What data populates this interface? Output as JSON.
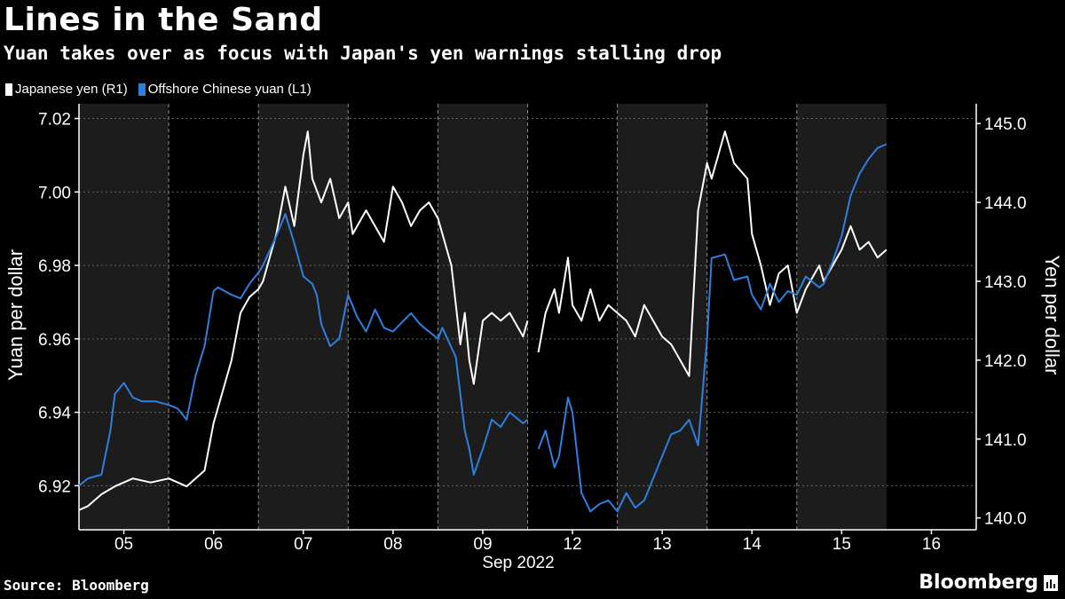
{
  "header": {
    "title": "Lines in the Sand",
    "subtitle": "Yuan takes over as focus with Japan's yen warnings stalling drop"
  },
  "footer": {
    "source": "Source: Bloomberg",
    "brand": "Bloomberg"
  },
  "colors": {
    "background": "#000000",
    "yen": "#ffffff",
    "yuan": "#2d7fe0",
    "shade": "#1c1c1c",
    "grid": "#666666"
  },
  "chart_data": {
    "type": "line",
    "title": "Lines in the Sand",
    "subtitle": "Yuan takes over as focus with Japan's yen warnings stalling drop",
    "xlabel": "Sep 2022",
    "ylabel_left": "Yuan per dollar",
    "ylabel_right": "Yen per dollar",
    "categories": [
      "05",
      "06",
      "07",
      "08",
      "09",
      "12",
      "13",
      "14",
      "15",
      "16"
    ],
    "shaded_days": [
      "05",
      "07",
      "09",
      "13",
      "15"
    ],
    "ylim_left": [
      6.908,
      7.024
    ],
    "ylim_right": [
      139.85,
      145.25
    ],
    "yticks_left": [
      6.92,
      6.94,
      6.96,
      6.98,
      7.0,
      7.02
    ],
    "yticks_left_labels": [
      "6.92",
      "6.94",
      "6.96",
      "6.98",
      "7.00",
      "7.02"
    ],
    "yticks_right": [
      140.0,
      141.0,
      142.0,
      143.0,
      144.0,
      145.0
    ],
    "yticks_right_labels": [
      "140.0",
      "141.0",
      "142.0",
      "143.0",
      "144.0",
      "145.0"
    ],
    "legend": [
      {
        "name": "Japanese yen (R1)",
        "color": "#ffffff"
      },
      {
        "name": "Offshore Chinese yuan (L1)",
        "color": "#2d7fe0"
      }
    ],
    "series": [
      {
        "name": "Japanese yen (R1)",
        "axis": "right",
        "x": [
          4.5,
          4.6,
          4.75,
          4.9,
          5.1,
          5.3,
          5.5,
          5.7,
          5.9,
          6.0,
          6.1,
          6.2,
          6.3,
          6.4,
          6.5,
          6.55,
          6.7,
          6.8,
          6.9,
          7.0,
          7.05,
          7.1,
          7.2,
          7.3,
          7.4,
          7.5,
          7.55,
          7.7,
          7.9,
          8.0,
          8.1,
          8.2,
          8.3,
          8.4,
          8.5,
          8.55,
          8.65,
          8.75,
          8.8,
          8.85,
          8.9,
          9.0,
          9.1,
          9.2,
          9.3,
          9.45,
          9.5,
          null,
          9.62,
          9.7,
          9.8,
          9.85,
          9.95,
          10.0,
          10.1,
          10.2,
          10.3,
          10.4,
          10.5,
          10.6,
          10.7,
          10.8,
          10.9,
          11.0,
          11.1,
          11.2,
          11.3,
          11.4,
          11.5,
          11.55,
          11.7,
          11.8,
          11.95,
          12.0,
          12.1,
          12.2,
          12.3,
          12.4,
          12.5,
          12.6,
          12.75,
          12.8,
          12.9,
          13.0,
          13.1,
          13.2,
          13.3,
          13.4,
          13.5
        ],
        "values": [
          140.1,
          140.15,
          140.3,
          140.4,
          140.5,
          140.45,
          140.5,
          140.4,
          140.6,
          141.2,
          141.6,
          142.0,
          142.6,
          142.8,
          142.9,
          143.0,
          143.6,
          144.2,
          143.7,
          144.6,
          144.9,
          144.3,
          144.0,
          144.3,
          143.8,
          144.0,
          143.6,
          143.9,
          143.5,
          144.2,
          144.0,
          143.7,
          143.9,
          144.0,
          143.8,
          143.6,
          143.2,
          142.2,
          142.6,
          142.0,
          141.7,
          142.5,
          142.6,
          142.5,
          142.6,
          142.3,
          142.5,
          null,
          142.1,
          142.6,
          142.9,
          142.6,
          143.3,
          142.7,
          142.5,
          142.9,
          142.5,
          142.7,
          142.6,
          142.5,
          142.3,
          142.7,
          142.5,
          142.3,
          142.2,
          142.0,
          141.8,
          143.9,
          144.5,
          144.3,
          144.9,
          144.5,
          144.3,
          143.6,
          143.2,
          142.7,
          143.1,
          143.2,
          142.6,
          142.9,
          143.2,
          143.0,
          143.2,
          143.4,
          143.7,
          143.4,
          143.5,
          143.3,
          143.4
        ]
      },
      {
        "name": "Offshore Chinese yuan (L1)",
        "axis": "left",
        "x": [
          4.5,
          4.6,
          4.75,
          4.85,
          4.9,
          5.0,
          5.1,
          5.2,
          5.35,
          5.5,
          5.6,
          5.7,
          5.8,
          5.9,
          6.0,
          6.05,
          6.2,
          6.3,
          6.4,
          6.5,
          6.55,
          6.7,
          6.8,
          6.9,
          7.0,
          7.1,
          7.15,
          7.2,
          7.3,
          7.4,
          7.5,
          7.6,
          7.7,
          7.8,
          7.9,
          8.0,
          8.2,
          8.3,
          8.4,
          8.5,
          8.55,
          8.7,
          8.8,
          8.85,
          8.9,
          9.0,
          9.1,
          9.2,
          9.3,
          9.45,
          9.5,
          null,
          9.62,
          9.7,
          9.8,
          9.85,
          9.95,
          10.0,
          10.1,
          10.2,
          10.3,
          10.4,
          10.5,
          10.6,
          10.7,
          10.8,
          10.9,
          11.0,
          11.1,
          11.2,
          11.3,
          11.4,
          11.5,
          11.55,
          11.7,
          11.8,
          11.95,
          12.0,
          12.1,
          12.2,
          12.3,
          12.4,
          12.5,
          12.6,
          12.75,
          12.8,
          12.9,
          13.0,
          13.1,
          13.2,
          13.3,
          13.4,
          13.5
        ],
        "values": [
          6.92,
          6.922,
          6.923,
          6.935,
          6.945,
          6.948,
          6.944,
          6.943,
          6.943,
          6.942,
          6.941,
          6.938,
          6.95,
          6.958,
          6.973,
          6.974,
          6.972,
          6.971,
          6.975,
          6.978,
          6.98,
          6.988,
          6.994,
          6.986,
          6.977,
          6.975,
          6.972,
          6.964,
          6.958,
          6.96,
          6.972,
          6.966,
          6.962,
          6.968,
          6.963,
          6.962,
          6.967,
          6.964,
          6.962,
          6.96,
          6.963,
          6.955,
          6.935,
          6.93,
          6.923,
          6.93,
          6.938,
          6.936,
          6.94,
          6.937,
          6.938,
          null,
          6.93,
          6.935,
          6.925,
          6.928,
          6.944,
          6.94,
          6.918,
          6.913,
          6.915,
          6.916,
          6.913,
          6.918,
          6.914,
          6.916,
          6.922,
          6.928,
          6.934,
          6.935,
          6.938,
          6.931,
          6.96,
          6.982,
          6.983,
          6.976,
          6.977,
          6.972,
          6.968,
          6.975,
          6.97,
          6.973,
          6.972,
          6.977,
          6.974,
          6.975,
          6.981,
          6.988,
          6.999,
          7.005,
          7.009,
          7.012,
          7.013
        ]
      }
    ]
  }
}
